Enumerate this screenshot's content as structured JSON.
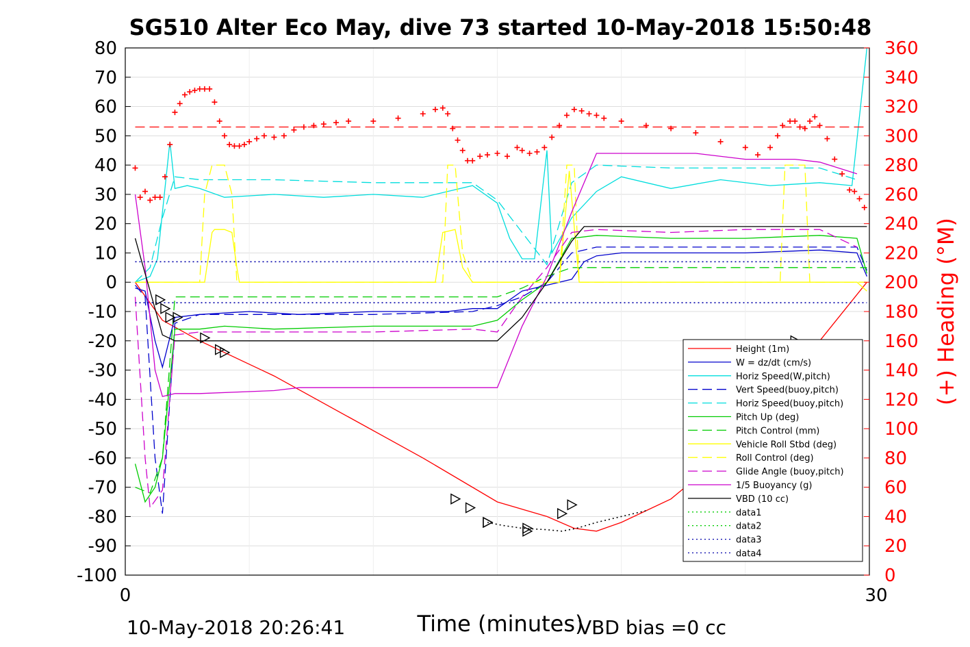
{
  "chart_data": {
    "type": "line",
    "title": "SG510 Alter Eco May, dive 73 started 10-May-2018 15:50:48",
    "xlabel": "Time (minutes)",
    "ylabel": "",
    "y2label": "(+) Heading (°M)",
    "xlim": [
      0,
      30
    ],
    "ylim": [
      -100,
      80
    ],
    "y2lim": [
      0,
      360
    ],
    "x_ticks": [
      "0",
      "30"
    ],
    "y_ticks": [
      "80",
      "70",
      "60",
      "50",
      "40",
      "30",
      "20",
      "10",
      "0",
      "-10",
      "-20",
      "-30",
      "-40",
      "-50",
      "-60",
      "-70",
      "-80",
      "-90",
      "-100"
    ],
    "y2_ticks": [
      "360",
      "340",
      "320",
      "300",
      "280",
      "260",
      "240",
      "220",
      "200",
      "180",
      "160",
      "140",
      "120",
      "100",
      "80",
      "60",
      "40",
      "20",
      "0"
    ],
    "grid": true,
    "legend_position": "lower-right",
    "footer_left": "10-May-2018 20:26:41",
    "footer_right": "VBD bias =0 cc",
    "series": [
      {
        "name": "Height (1m)",
        "color": "#ff0000",
        "style": "solid",
        "x": [
          0.4,
          1.5,
          3,
          6,
          9,
          12,
          15,
          17,
          18.1,
          19,
          20,
          21,
          22,
          24,
          26,
          28,
          29.9
        ],
        "y": [
          0,
          -13,
          -20,
          -32,
          -46,
          -60,
          -75,
          -80,
          -84,
          -85,
          -82,
          -78,
          -74,
          -60,
          -44,
          -20,
          0
        ]
      },
      {
        "name": "W = dz/dt (cm/s)",
        "color": "#0000cc",
        "style": "solid",
        "x": [
          0.4,
          0.8,
          1.2,
          1.5,
          2,
          3,
          5,
          7,
          10,
          13,
          14,
          14.5,
          15,
          16,
          17,
          18,
          18.5,
          19,
          20,
          22,
          25,
          28,
          29.5,
          29.9
        ],
        "y": [
          -2,
          -3,
          -20,
          -29,
          -12,
          -11,
          -10,
          -11,
          -10,
          -10,
          -9,
          -9,
          -9,
          -3,
          -1,
          1,
          7,
          9,
          10,
          10,
          10,
          11,
          10,
          2
        ]
      },
      {
        "name": "Horiz Speed(W,pitch)",
        "color": "#00dddd",
        "style": "solid",
        "x": [
          0.4,
          1,
          1.3,
          1.8,
          2,
          2.5,
          3,
          4,
          6,
          8,
          10,
          12,
          13,
          14,
          14.5,
          15,
          15.5,
          16,
          16.5,
          17,
          17.2,
          18,
          19,
          20,
          22,
          24,
          26,
          28,
          29.3,
          29.9
        ],
        "y": [
          0,
          2,
          8,
          48,
          32,
          33,
          32,
          29,
          30,
          29,
          30,
          29,
          31,
          33,
          30,
          27,
          15,
          8,
          8,
          45,
          10,
          22,
          31,
          36,
          32,
          35,
          33,
          34,
          33,
          80
        ]
      },
      {
        "name": "Vert Speed(buoy,pitch)",
        "color": "#0000cc",
        "style": "dashed",
        "x": [
          0.4,
          0.8,
          1.2,
          1.5,
          2,
          3,
          6,
          10,
          14,
          15,
          16,
          17,
          18,
          19,
          22,
          25,
          28,
          29.5,
          29.9
        ],
        "y": [
          -1,
          -5,
          -60,
          -79,
          -14,
          -11,
          -11,
          -11,
          -10,
          -8,
          -5,
          0,
          10,
          12,
          12,
          12,
          12,
          12,
          4
        ]
      },
      {
        "name": "Horiz Speed(buoy,pitch)",
        "color": "#00dddd",
        "style": "dashed",
        "x": [
          0.4,
          1,
          1.5,
          2,
          3,
          6,
          10,
          13,
          14,
          15,
          16,
          17,
          18,
          19,
          22,
          25,
          28,
          29.5
        ],
        "y": [
          0,
          5,
          22,
          36,
          35,
          35,
          34,
          34,
          34,
          28,
          17,
          6,
          34,
          40,
          39,
          39,
          39,
          35
        ]
      },
      {
        "name": "Pitch Up (deg)",
        "color": "#00cc00",
        "style": "solid",
        "x": [
          0.4,
          0.8,
          1.2,
          1.5,
          2,
          3,
          4,
          6,
          10,
          14,
          15,
          16,
          17,
          18,
          19,
          22,
          25,
          28,
          29.5,
          29.9
        ],
        "y": [
          -62,
          -75,
          -70,
          -60,
          -16,
          -16,
          -15,
          -16,
          -15,
          -15,
          -13,
          -6,
          0,
          15,
          16,
          15,
          15,
          16,
          15,
          3
        ]
      },
      {
        "name": "Pitch Control (mm)",
        "color": "#00cc00",
        "style": "dashed",
        "x": [
          0.4,
          1,
          1.5,
          2,
          3,
          6,
          10,
          14,
          15,
          16,
          17,
          18,
          20,
          25,
          29.9
        ],
        "y": [
          -70,
          -72,
          -60,
          -5,
          -5,
          -5,
          -5,
          -5,
          -5,
          -2,
          2,
          5,
          5,
          5,
          5
        ]
      },
      {
        "name": "Vehicle Roll Stbd (deg)",
        "color": "#ffff00",
        "style": "solid",
        "x": [
          0.4,
          1.5,
          2,
          3,
          3.2,
          3.5,
          3.6,
          4,
          4.3,
          4.5,
          4.6,
          6,
          10,
          12.5,
          12.8,
          13.3,
          13.6,
          14,
          14.5,
          16,
          17,
          17.5,
          17.9,
          18.3,
          20,
          25,
          26.5,
          27.5,
          29.5,
          29.9
        ],
        "y": [
          0,
          0,
          0,
          0,
          0,
          17,
          18,
          18,
          17,
          5,
          0,
          0,
          0,
          0,
          17,
          18,
          5,
          0,
          0,
          0,
          0,
          0,
          38,
          0,
          0,
          0,
          0,
          0,
          0,
          -3
        ]
      },
      {
        "name": "Roll Control (deg)",
        "color": "#ffff00",
        "style": "dashed",
        "x": [
          0.4,
          1,
          1.5,
          3,
          3.2,
          3.5,
          4,
          4.3,
          4.5,
          6,
          10,
          12.8,
          13,
          13.3,
          13.6,
          14,
          16,
          17.5,
          17.8,
          18.1,
          18.3,
          20,
          26.4,
          26.6,
          27.4,
          27.6,
          29.9
        ],
        "y": [
          0,
          0,
          0,
          0,
          30,
          40,
          40,
          30,
          0,
          0,
          0,
          0,
          40,
          40,
          10,
          0,
          0,
          0,
          40,
          40,
          0,
          0,
          0,
          40,
          40,
          0,
          0
        ]
      },
      {
        "name": "Glide Angle (buoy,pitch)",
        "color": "#cc00cc",
        "style": "dashed",
        "x": [
          0.4,
          0.8,
          1,
          1.5,
          2,
          3,
          6,
          10,
          14,
          15,
          16,
          17,
          18,
          19,
          22,
          25,
          28,
          29.5
        ],
        "y": [
          -5,
          -60,
          -77,
          -71,
          -18,
          -17,
          -17,
          -17,
          -16,
          -17,
          -5,
          5,
          17,
          18,
          17,
          18,
          18,
          12
        ]
      },
      {
        "name": "1/5 Buoyancy (g)",
        "color": "#cc00cc",
        "style": "solid",
        "x": [
          0.4,
          0.8,
          1.2,
          1.5,
          2,
          3,
          6,
          7,
          12,
          15,
          16,
          17,
          18,
          19,
          23,
          25,
          27,
          28,
          29.5
        ],
        "y": [
          30,
          5,
          -30,
          -39,
          -38,
          -38,
          -37,
          -36,
          -36,
          -36,
          -15,
          2,
          24,
          44,
          44,
          42,
          42,
          41,
          37
        ]
      },
      {
        "name": "VBD (10 cc)",
        "color": "#000000",
        "style": "solid",
        "x": [
          0.4,
          1.5,
          2,
          3,
          6,
          10,
          14,
          15,
          16,
          17,
          18,
          18.5,
          20,
          25,
          29.9
        ],
        "y": [
          15,
          -18,
          -20,
          -20,
          -20,
          -20,
          -20,
          -20,
          -12,
          0,
          14,
          19,
          19,
          19,
          19
        ]
      },
      {
        "name": "data1",
        "color": "#00cc00",
        "style": "dotted",
        "x": [],
        "y": []
      },
      {
        "name": "data2",
        "color": "#00cc00",
        "style": "dotted",
        "x": [],
        "y": []
      },
      {
        "name": "data3",
        "color": "#0000aa",
        "style": "dotted",
        "x": [
          0.4,
          29.9
        ],
        "y": [
          7,
          7
        ]
      },
      {
        "name": "data4",
        "color": "#0000aa",
        "style": "dotted",
        "x": [
          0.4,
          29.9
        ],
        "y": [
          -7,
          -7
        ]
      }
    ],
    "extra_lines": [
      {
        "name": "height-black-dotted",
        "color": "#000000",
        "style": "dotted",
        "x": [
          14.6,
          15.2,
          16,
          17,
          17.6,
          18.2,
          19,
          20,
          21
        ],
        "y": [
          -82,
          -83,
          -84,
          -84.5,
          -85,
          -84,
          -82,
          -80,
          -78
        ]
      },
      {
        "name": "heading-reference",
        "color": "#ff0000",
        "style": "dashed",
        "axis": "right",
        "x": [
          0.4,
          29.9
        ],
        "y": [
          306,
          306
        ]
      }
    ],
    "heading": {
      "axis": "right",
      "marker": "+",
      "color": "#ff0000",
      "x": [
        0.4,
        0.6,
        0.8,
        1,
        1.2,
        1.4,
        1.6,
        1.8,
        2,
        2.2,
        2.4,
        2.6,
        2.8,
        3,
        3.2,
        3.4,
        3.6,
        3.8,
        4,
        4.2,
        4.4,
        4.6,
        4.8,
        5,
        5.3,
        5.6,
        6,
        6.4,
        6.8,
        7.2,
        7.6,
        8,
        8.5,
        9,
        10,
        11,
        12,
        12.5,
        12.8,
        13,
        13.2,
        13.4,
        13.6,
        13.8,
        14,
        14.3,
        14.6,
        15,
        15.4,
        15.8,
        16,
        16.3,
        16.6,
        16.9,
        17.2,
        17.5,
        17.8,
        18.1,
        18.4,
        18.7,
        19,
        19.3,
        20,
        21,
        22,
        23,
        24,
        25,
        25.5,
        26,
        26.3,
        26.5,
        26.8,
        27,
        27.2,
        27.4,
        27.6,
        27.8,
        28,
        28.3,
        28.6,
        28.9,
        29.2,
        29.4,
        29.6,
        29.8
      ],
      "y": [
        278,
        258,
        262,
        256,
        258,
        258,
        272,
        294,
        316,
        322,
        328,
        330,
        331,
        332,
        332,
        332,
        323,
        310,
        300,
        294,
        293,
        293,
        294,
        296,
        298,
        300,
        299,
        300,
        304,
        306,
        307,
        308,
        309,
        310,
        310,
        312,
        315,
        318,
        319,
        315,
        305,
        297,
        290,
        283,
        283,
        286,
        287,
        288,
        286,
        292,
        290,
        288,
        289,
        292,
        299,
        307,
        314,
        318,
        317,
        315,
        314,
        312,
        310,
        307,
        305,
        302,
        296,
        292,
        287,
        292,
        300,
        307,
        310,
        310,
        306,
        305,
        310,
        313,
        307,
        298,
        284,
        274,
        263,
        262,
        257,
        251
      ]
    },
    "triangle_markers": [
      {
        "x": 1.4,
        "y": -6
      },
      {
        "x": 1.6,
        "y": -9
      },
      {
        "x": 1.8,
        "y": -12
      },
      {
        "x": 2.1,
        "y": -12
      },
      {
        "x": 3.2,
        "y": -19
      },
      {
        "x": 3.8,
        "y": -23
      },
      {
        "x": 4,
        "y": -24
      },
      {
        "x": 13.3,
        "y": -74
      },
      {
        "x": 13.9,
        "y": -77
      },
      {
        "x": 14.6,
        "y": -82
      },
      {
        "x": 14.6,
        "y": -82
      },
      {
        "x": 16.2,
        "y": -84
      },
      {
        "x": 16.2,
        "y": -85
      },
      {
        "x": 17.6,
        "y": -79
      },
      {
        "x": 18,
        "y": -76
      },
      {
        "x": 27,
        "y": -20
      }
    ]
  }
}
